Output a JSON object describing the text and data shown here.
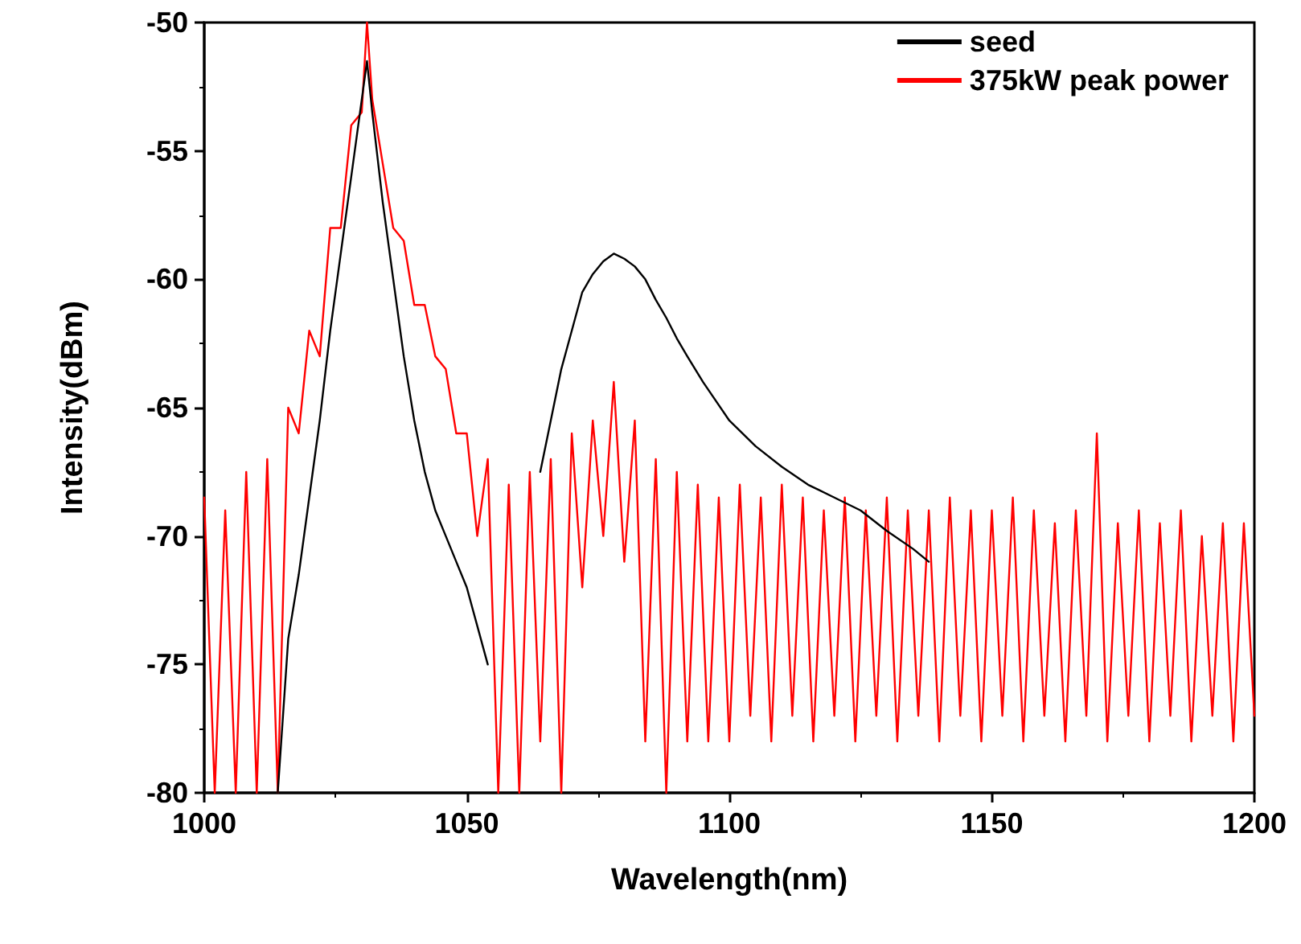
{
  "chart_data": {
    "type": "line",
    "xlabel": "Wavelength(nm)",
    "ylabel": "Intensity(dBm)",
    "xlim": [
      1000,
      1200
    ],
    "xticks": [
      1000,
      1050,
      1100,
      1150,
      1200
    ],
    "ylim": [
      -80,
      -50
    ],
    "yticks": [
      -80,
      -75,
      -70,
      -65,
      -60,
      -55,
      -50
    ],
    "grid": false,
    "legend": "top right",
    "marker": "none",
    "line_style": "solid",
    "series": [
      {
        "name": "seed",
        "color": "#000000",
        "x": [
          1014,
          1015,
          1016,
          1018,
          1020,
          1022,
          1024,
          1026,
          1028,
          1030,
          1031,
          1032,
          1034,
          1036,
          1038,
          1040,
          1042,
          1044,
          1046,
          1048,
          1050,
          1052,
          1054,
          1059,
          1064,
          1066,
          1068,
          1070,
          1072,
          1074,
          1076,
          1078,
          1080,
          1082,
          1084,
          1086,
          1088,
          1090,
          1092,
          1095,
          1100,
          1105,
          1110,
          1115,
          1120,
          1125,
          1130,
          1135,
          1138
        ],
        "values": [
          -80,
          -77,
          -74,
          -71.5,
          -68.5,
          -65.5,
          -62,
          -59,
          -56,
          -53,
          -51.5,
          -53.5,
          -57,
          -60,
          -63,
          -65.5,
          -67.5,
          -69,
          -70,
          -71,
          -72,
          -73.5,
          -75,
          null,
          -67.5,
          -65.5,
          -63.5,
          -62,
          -60.5,
          -59.8,
          -59.3,
          -59,
          -59.2,
          -59.5,
          -60,
          -60.8,
          -61.5,
          -62.3,
          -63,
          -64,
          -65.5,
          -66.5,
          -67.3,
          -68,
          -68.5,
          -69,
          -69.8,
          -70.5,
          -71
        ]
      },
      {
        "name": "375kW peak power",
        "color": "#ff0000",
        "x": [
          1000,
          1002,
          1004,
          1006,
          1008,
          1010,
          1012,
          1014,
          1016,
          1018,
          1020,
          1022,
          1024,
          1026,
          1028,
          1030,
          1031,
          1032,
          1034,
          1036,
          1038,
          1040,
          1042,
          1044,
          1046,
          1048,
          1050,
          1052,
          1054,
          1056,
          1058,
          1060,
          1062,
          1064,
          1066,
          1068,
          1070,
          1072,
          1074,
          1076,
          1078,
          1080,
          1082,
          1084,
          1086,
          1088,
          1090,
          1092,
          1094,
          1096,
          1098,
          1100,
          1102,
          1104,
          1106,
          1108,
          1110,
          1112,
          1114,
          1116,
          1118,
          1120,
          1122,
          1124,
          1126,
          1128,
          1130,
          1132,
          1134,
          1136,
          1138,
          1140,
          1142,
          1144,
          1146,
          1148,
          1150,
          1152,
          1154,
          1156,
          1158,
          1160,
          1162,
          1164,
          1166,
          1168,
          1170,
          1172,
          1174,
          1176,
          1178,
          1180,
          1182,
          1184,
          1186,
          1188,
          1190,
          1192,
          1194,
          1196,
          1198,
          1200
        ],
        "values": [
          -68.5,
          -80,
          -69,
          -80,
          -67.5,
          -80,
          -67,
          -80,
          -65,
          -66,
          -62,
          -63,
          -58,
          -58,
          -54,
          -53.5,
          -50,
          -53,
          -55.5,
          -58,
          -58.5,
          -61,
          -61,
          -63,
          -63.5,
          -66,
          -66,
          -70,
          -67,
          -80,
          -68,
          -80,
          -67.5,
          -78,
          -67,
          -80,
          -66,
          -72,
          -65.5,
          -70,
          -64,
          -71,
          -65.5,
          -78,
          -67,
          -80,
          -67.5,
          -78,
          -68,
          -78,
          -68.5,
          -78,
          -68,
          -77,
          -68.5,
          -78,
          -68,
          -77,
          -68.5,
          -78,
          -69,
          -77,
          -68.5,
          -78,
          -69,
          -77,
          -68.5,
          -78,
          -69,
          -77,
          -69,
          -78,
          -68.5,
          -77,
          -69,
          -78,
          -69,
          -77,
          -68.5,
          -78,
          -69,
          -77,
          -69.5,
          -78,
          -69,
          -77,
          -66,
          -78,
          -69.5,
          -77,
          -69,
          -78,
          -69.5,
          -77,
          -69,
          -78,
          -70,
          -77,
          -69.5,
          -78,
          -69.5,
          -77
        ]
      }
    ]
  }
}
